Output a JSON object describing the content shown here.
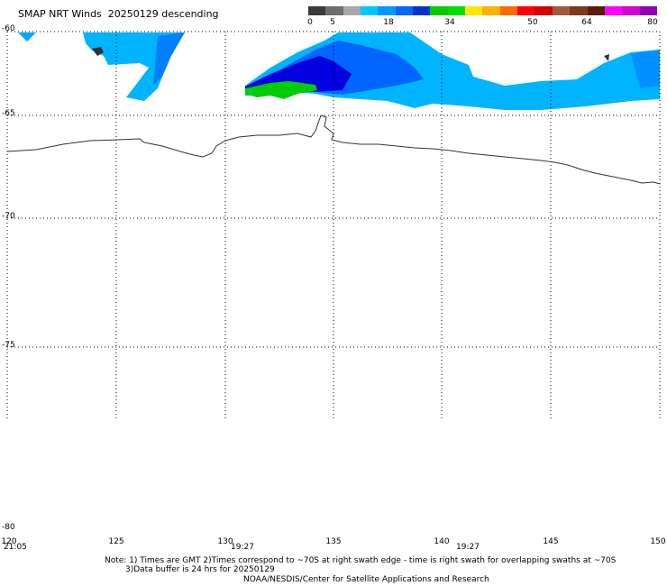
{
  "title": "SMAP NRT Winds  20250129 descending",
  "colorbar": {
    "labels": [
      "0",
      "5",
      "18",
      "34",
      "50",
      "64",
      "80"
    ],
    "colors": [
      "#3a3a3a",
      "#6e6e6e",
      "#a8a8a8",
      "#00c8ff",
      "#0099ff",
      "#0066ff",
      "#0033cc",
      "#00cc00",
      "#00e000",
      "#ffe600",
      "#ffb000",
      "#ff6a00",
      "#ff0000",
      "#d40000",
      "#a05a3c",
      "#7a3a1e",
      "#5a1a0a",
      "#ff00ff",
      "#d000d0",
      "#9000b0"
    ]
  },
  "map": {
    "lat_labels": [
      "-60",
      "-65",
      "-70",
      "-75",
      "-80"
    ],
    "lon_labels": [
      "120",
      "125",
      "130",
      "135",
      "140",
      "145",
      "150"
    ],
    "time_labels": [
      "21:05",
      "19:27",
      "19:27"
    ]
  },
  "notes": {
    "line1": "Note: 1) Times are GMT 2)Times correspond to ~70S at right swath edge - time is right swath for overlapping swaths at ~70S",
    "line2": "3)Data buffer is 24 hrs for 20250129",
    "line3": "NOAA/NESDIS/Center for Satellite Applications and Research"
  }
}
